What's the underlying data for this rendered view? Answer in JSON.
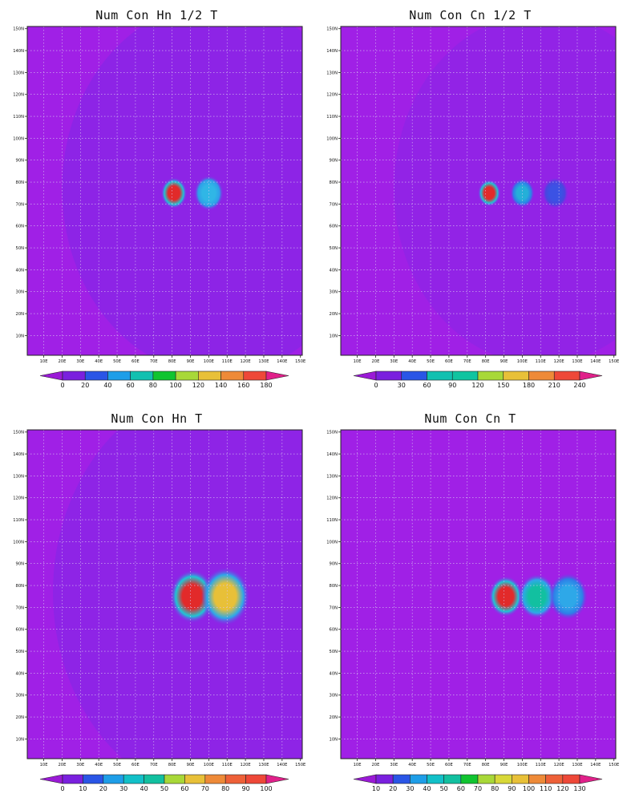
{
  "panels": [
    {
      "title": "Num Con Hn 1/2 T",
      "x_ticks": [
        "10E",
        "20E",
        "30E",
        "40E",
        "50E",
        "60E",
        "70E",
        "80E",
        "90E",
        "100E",
        "110E",
        "120E",
        "130E",
        "140E",
        "150E"
      ],
      "y_ticks": [
        "10N",
        "20N",
        "30N",
        "40N",
        "50N",
        "60N",
        "70N",
        "80N",
        "90N",
        "100N",
        "110N",
        "120N",
        "130N",
        "140N",
        "150N"
      ],
      "colorbar_labels": [
        "0",
        "20",
        "40",
        "60",
        "80",
        "100",
        "120",
        "140",
        "160",
        "180"
      ],
      "colorbar_colors": [
        "#9a1ad6",
        "#7a20de",
        "#2a55e6",
        "#1e9ee8",
        "#12c0b0",
        "#10c430",
        "#a8d838",
        "#e8c038",
        "#ee8a38",
        "#ee4838",
        "#e0208a"
      ],
      "features": [
        {
          "type": "disk",
          "lon": 105,
          "lat": 77,
          "r": 85,
          "fill": "#8028e6",
          "opacity": 0.6
        },
        {
          "type": "blob",
          "lon": 81,
          "lat": 75,
          "r": 3.2,
          "color": "#e22a2a",
          "halo": "#1ec6d6"
        },
        {
          "type": "blob",
          "lon": 100,
          "lat": 75,
          "r": 3.6,
          "color": "#30b6e6",
          "halo": "#2e9ee8"
        }
      ]
    },
    {
      "title": "Num Con Cn 1/2 T",
      "x_ticks": [
        "10E",
        "20E",
        "30E",
        "40E",
        "50E",
        "60E",
        "70E",
        "80E",
        "90E",
        "100E",
        "110E",
        "120E",
        "130E",
        "140E",
        "150E"
      ],
      "y_ticks": [
        "10N",
        "20N",
        "30N",
        "40N",
        "50N",
        "60N",
        "70N",
        "80N",
        "90N",
        "100N",
        "110N",
        "120N",
        "130N",
        "140N",
        "150N"
      ],
      "colorbar_labels": [
        "0",
        "30",
        "60",
        "90",
        "120",
        "150",
        "180",
        "210",
        "240"
      ],
      "colorbar_colors": [
        "#9a1ad6",
        "#7a20de",
        "#2a55e6",
        "#12c0b0",
        "#10c4a0",
        "#a8d838",
        "#e8c038",
        "#ee8a38",
        "#ee4838",
        "#e0208a"
      ],
      "features": [
        {
          "type": "disk",
          "lon": 110,
          "lat": 77,
          "r": 80,
          "fill": "#8028e6",
          "opacity": 0.45
        },
        {
          "type": "blob",
          "lon": 82,
          "lat": 75,
          "r": 2.8,
          "color": "#e22a2a",
          "halo": "#1ec6d6"
        },
        {
          "type": "blob",
          "lon": 100,
          "lat": 75,
          "r": 3.0,
          "color": "#24b0d8",
          "halo": "#2e7ee8"
        },
        {
          "type": "blob",
          "lon": 118,
          "lat": 75,
          "r": 3.2,
          "color": "#3b52e4",
          "halo": "#4a45e0"
        }
      ]
    },
    {
      "title": "Num Con Hn  T",
      "x_ticks": [
        "10E",
        "20E",
        "30E",
        "40E",
        "50E",
        "60E",
        "70E",
        "80E",
        "90E",
        "100E",
        "110E",
        "120E",
        "130E",
        "140E",
        "150E"
      ],
      "y_ticks": [
        "10N",
        "20N",
        "30N",
        "40N",
        "50N",
        "60N",
        "70N",
        "80N",
        "90N",
        "100N",
        "110N",
        "120N",
        "130N",
        "140N",
        "150N"
      ],
      "colorbar_labels": [
        "0",
        "10",
        "20",
        "30",
        "40",
        "50",
        "60",
        "70",
        "80",
        "90",
        "100"
      ],
      "colorbar_colors": [
        "#9a1ad6",
        "#7a20de",
        "#2a55e6",
        "#1e9ee8",
        "#12c0c8",
        "#12c0a0",
        "#a8d838",
        "#e8c038",
        "#ee8a38",
        "#ee6038",
        "#ee4838",
        "#e0208a"
      ],
      "features": [
        {
          "type": "disk",
          "lon": 110,
          "lat": 77,
          "r": 95,
          "fill": "#8028e6",
          "opacity": 0.55
        },
        {
          "type": "blob",
          "lon": 91,
          "lat": 75,
          "r": 5.5,
          "color": "#e22a2a",
          "halo": "#1ec6d6"
        },
        {
          "type": "blob",
          "lon": 109,
          "lat": 75,
          "r": 6.0,
          "color": "#e8c038",
          "halo": "#2ea8e8"
        }
      ]
    },
    {
      "title": "Num Con Cn  T",
      "x_ticks": [
        "10E",
        "20E",
        "30E",
        "40E",
        "50E",
        "60E",
        "70E",
        "80E",
        "90E",
        "100E",
        "110E",
        "120E",
        "130E",
        "140E",
        "150E"
      ],
      "y_ticks": [
        "10N",
        "20N",
        "30N",
        "40N",
        "50N",
        "60N",
        "70N",
        "80N",
        "90N",
        "100N",
        "110N",
        "120N",
        "130N",
        "140N",
        "150N"
      ],
      "colorbar_labels": [
        "10",
        "20",
        "30",
        "40",
        "50",
        "60",
        "70",
        "80",
        "90",
        "100",
        "110",
        "120",
        "130"
      ],
      "colorbar_colors": [
        "#9a1ad6",
        "#7a20de",
        "#2a55e6",
        "#1e9ee8",
        "#12c0c8",
        "#12c0a0",
        "#10c430",
        "#a8d838",
        "#d8d838",
        "#e8c038",
        "#ee8a38",
        "#ee6038",
        "#ee4838",
        "#e0208a"
      ],
      "features": [
        {
          "type": "blob",
          "lon": 91,
          "lat": 75,
          "r": 4.2,
          "color": "#e22a2a",
          "halo": "#1ec6d6"
        },
        {
          "type": "blob",
          "lon": 108,
          "lat": 75,
          "r": 4.6,
          "color": "#12c0a0",
          "halo": "#2ea8e8"
        },
        {
          "type": "blob",
          "lon": 125,
          "lat": 75,
          "r": 4.8,
          "color": "#2ea8e8",
          "halo": "#2e7ee8"
        }
      ]
    }
  ]
}
